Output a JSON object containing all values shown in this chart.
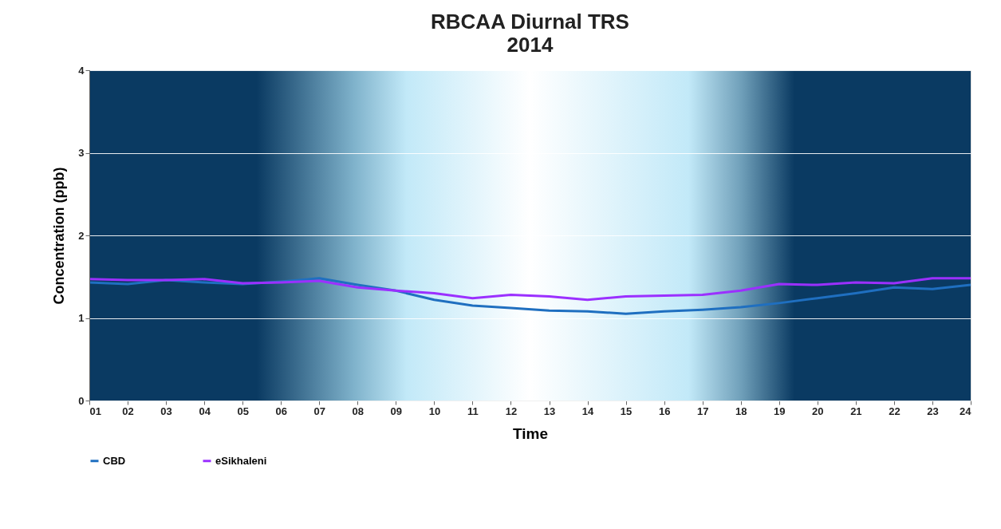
{
  "chart_data": {
    "type": "line",
    "title": "RBCAA Diurnal TRS",
    "subtitle": "2014",
    "xlabel": "Time",
    "ylabel": "Concentration  (ppb)",
    "categories": [
      "01",
      "02",
      "03",
      "04",
      "05",
      "06",
      "07",
      "08",
      "09",
      "10",
      "11",
      "12",
      "13",
      "14",
      "15",
      "16",
      "17",
      "18",
      "19",
      "20",
      "21",
      "22",
      "23",
      "24"
    ],
    "series": [
      {
        "name": "CBD",
        "color": "#1f6fc0",
        "values": [
          1.43,
          1.41,
          1.46,
          1.43,
          1.41,
          1.44,
          1.48,
          1.4,
          1.33,
          1.22,
          1.15,
          1.12,
          1.09,
          1.08,
          1.05,
          1.08,
          1.1,
          1.13,
          1.18,
          1.24,
          1.3,
          1.37,
          1.35,
          1.4
        ]
      },
      {
        "name": "eSikhaleni",
        "color": "#9b30ff",
        "values": [
          1.47,
          1.46,
          1.46,
          1.47,
          1.42,
          1.43,
          1.45,
          1.37,
          1.33,
          1.3,
          1.24,
          1.28,
          1.26,
          1.22,
          1.26,
          1.27,
          1.28,
          1.33,
          1.41,
          1.4,
          1.43,
          1.42,
          1.48,
          1.48
        ]
      }
    ],
    "ylim": [
      0,
      4
    ],
    "yticks": [
      0,
      1,
      2,
      3,
      4
    ],
    "grid": "y",
    "legend": "bottom",
    "marker": "none",
    "line_style": "solid"
  }
}
